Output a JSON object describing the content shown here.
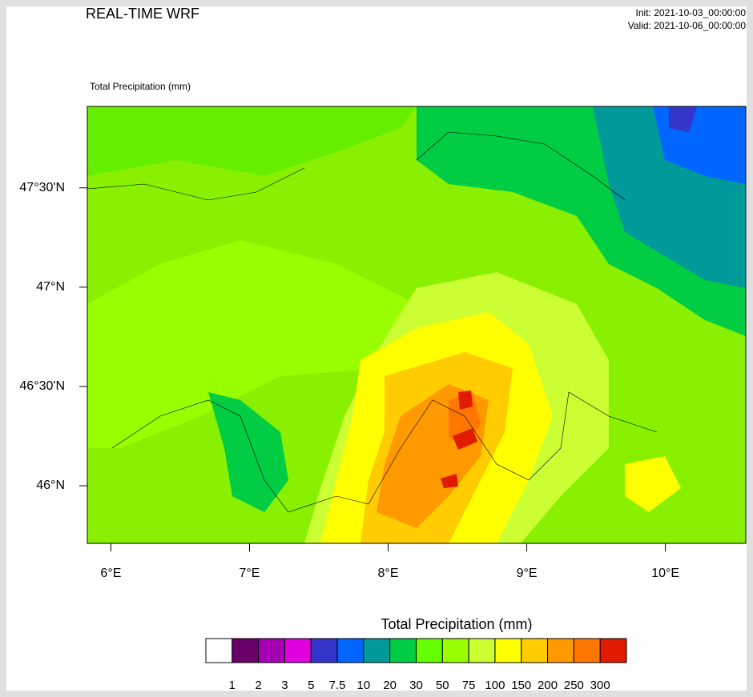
{
  "header": {
    "title": "REAL-TIME WRF",
    "init": "Init: 2021-10-03_00:00:00",
    "valid": "Valid: 2021-10-06_00:00:00"
  },
  "map": {
    "field_label": "Total Precipitation   (mm)",
    "lon_range": [
      5.83,
      10.58
    ],
    "lat_range": [
      45.71,
      47.91
    ],
    "lat_ticks": [
      {
        "value": 46,
        "label": "46°N"
      },
      {
        "value": 46.5,
        "label": "46°30'N"
      },
      {
        "value": 47,
        "label": "47°N"
      },
      {
        "value": 47.5,
        "label": "47°30'N"
      }
    ],
    "lon_ticks": [
      {
        "value": 6,
        "label": "6°E"
      },
      {
        "value": 7,
        "label": "7°E"
      },
      {
        "value": 8,
        "label": "8°E"
      },
      {
        "value": 9,
        "label": "9°E"
      },
      {
        "value": 10,
        "label": "10°E"
      }
    ]
  },
  "colorbar": {
    "title": "Total Precipitation  (mm)",
    "levels": [
      1,
      2,
      3,
      5,
      7.5,
      10,
      20,
      30,
      50,
      75,
      100,
      150,
      200,
      250,
      300
    ],
    "colors": [
      "#ffffff",
      "#6a006a",
      "#a600b4",
      "#e000e0",
      "#3535cc",
      "#0066ff",
      "#009a9a",
      "#00cc44",
      "#66ff00",
      "#99ff00",
      "#ccff33",
      "#ffff00",
      "#ffcc00",
      "#ff9900",
      "#ff7700",
      "#e01b00"
    ]
  }
}
